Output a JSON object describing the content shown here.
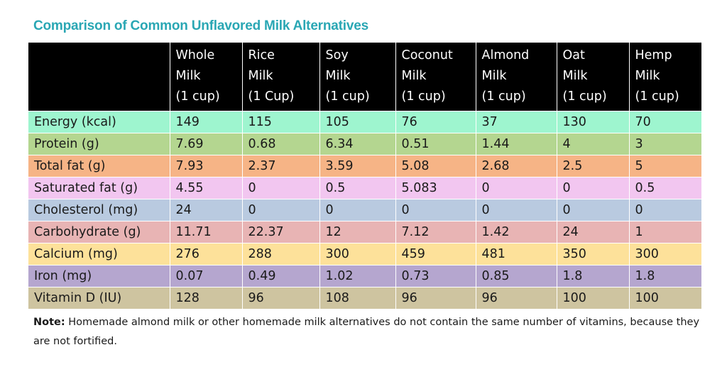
{
  "title": "Comparison of Common Unflavored Milk Alternatives",
  "columns": [
    {
      "line1": "Whole",
      "line2": "Milk",
      "line3": "(1 cup)"
    },
    {
      "line1": "Rice",
      "line2": "Milk",
      "line3": "(1 Cup)"
    },
    {
      "line1": "Soy",
      "line2": "Milk",
      "line3": "(1 cup)"
    },
    {
      "line1": "Coconut",
      "line2": "Milk",
      "line3": "(1 cup)"
    },
    {
      "line1": "Almond",
      "line2": "Milk",
      "line3": "(1 cup)"
    },
    {
      "line1": "Oat",
      "line2": "Milk",
      "line3": "(1 cup)"
    },
    {
      "line1": "Hemp",
      "line2": "Milk",
      "line3": "(1 cup)"
    }
  ],
  "rows": [
    {
      "label": "Energy (kcal)",
      "color": "#9ef5cf",
      "values": [
        "149",
        "115",
        "105",
        "76",
        "37",
        "130",
        "70"
      ]
    },
    {
      "label": "Protein (g)",
      "color": "#b4d690",
      "values": [
        "7.69",
        "0.68",
        "6.34",
        "0.51",
        "1.44",
        "4",
        "3"
      ]
    },
    {
      "label": "Total fat (g)",
      "color": "#f6b486",
      "values": [
        "7.93",
        "2.37",
        "3.59",
        "5.08",
        "2.68",
        "2.5",
        "5"
      ]
    },
    {
      "label": "Saturated fat (g)",
      "color": "#f2c6f0",
      "values": [
        "4.55",
        "0",
        "0.5",
        "5.083",
        "0",
        "0",
        "0.5"
      ]
    },
    {
      "label": "Cholesterol (mg)",
      "color": "#b9cae0",
      "values": [
        "24",
        "0",
        "0",
        "0",
        "0",
        "0",
        "0"
      ]
    },
    {
      "label": "Carbohydrate (g)",
      "color": "#e8b4b4",
      "values": [
        "11.71",
        "22.37",
        "12",
        "7.12",
        "1.42",
        "24",
        "1"
      ]
    },
    {
      "label": "Calcium (mg)",
      "color": "#fde19a",
      "values": [
        "276",
        "288",
        "300",
        "459",
        "481",
        "350",
        "300"
      ]
    },
    {
      "label": "Iron (mg)",
      "color": "#b5a6cf",
      "values": [
        "0.07",
        "0.49",
        "1.02",
        "0.73",
        "0.85",
        "1.8",
        "1.8"
      ]
    },
    {
      "label": "Vitamin D (IU)",
      "color": "#cec4a0",
      "values": [
        "128",
        "96",
        "108",
        "96",
        "96",
        "100",
        "100"
      ]
    }
  ],
  "note": {
    "label": "Note:",
    "text": " Homemade almond milk or other homemade milk alternatives do not contain the same number of vitamins, because they are not fortified."
  }
}
